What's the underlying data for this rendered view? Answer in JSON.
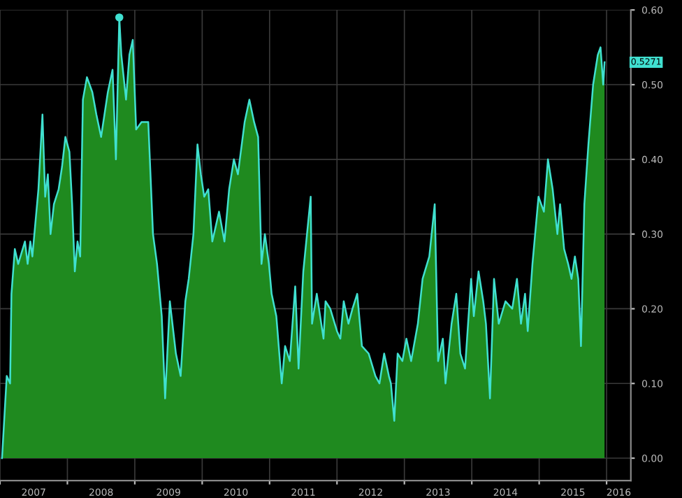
{
  "chart_data": {
    "type": "area",
    "xlim": [
      2007,
      2016.36
    ],
    "ylim": [
      -0.03,
      0.6
    ],
    "xticks": [
      {
        "value": 2007,
        "label": null
      },
      {
        "value": 2007.5,
        "label": "2007"
      },
      {
        "value": 2008,
        "label": null
      },
      {
        "value": 2008.5,
        "label": "2008"
      },
      {
        "value": 2009,
        "label": null
      },
      {
        "value": 2009.5,
        "label": "2009"
      },
      {
        "value": 2010,
        "label": null
      },
      {
        "value": 2010.5,
        "label": "2010"
      },
      {
        "value": 2011,
        "label": null
      },
      {
        "value": 2011.5,
        "label": "2011"
      },
      {
        "value": 2012,
        "label": null
      },
      {
        "value": 2012.5,
        "label": "2012"
      },
      {
        "value": 2013,
        "label": null
      },
      {
        "value": 2013.5,
        "label": "2013"
      },
      {
        "value": 2014,
        "label": null
      },
      {
        "value": 2014.5,
        "label": "2014"
      },
      {
        "value": 2015,
        "label": null
      },
      {
        "value": 2015.5,
        "label": "2015"
      },
      {
        "value": 2016,
        "label": null
      },
      {
        "value": 2016.18,
        "label": "2016"
      }
    ],
    "yticks": [
      {
        "value": 0,
        "label": "0.00"
      },
      {
        "value": 0.1,
        "label": "0.10"
      },
      {
        "value": 0.2,
        "label": "0.20"
      },
      {
        "value": 0.3,
        "label": "0.30"
      },
      {
        "value": 0.4,
        "label": "0.40"
      },
      {
        "value": 0.5,
        "label": "0.50"
      },
      {
        "value": 0.6,
        "label": "0.60"
      }
    ],
    "grid": true,
    "series": [
      {
        "color": "#40e0d0",
        "x": [
          2007.03,
          2007.1,
          2007.15,
          2007.17,
          2007.22,
          2007.27,
          2007.37,
          2007.41,
          2007.45,
          2007.48,
          2007.52,
          2007.57,
          2007.63,
          2007.67,
          2007.71,
          2007.75,
          2007.8,
          2007.87,
          2007.92,
          2007.97,
          2008.03,
          2008.07,
          2008.11,
          2008.15,
          2008.19,
          2008.23,
          2008.29,
          2008.37,
          2008.43,
          2008.5,
          2008.55,
          2008.6,
          2008.67,
          2008.72,
          2008.77,
          2008.8,
          2008.87,
          2008.92,
          2008.97,
          2009.02,
          2009.1,
          2009.2,
          2009.27,
          2009.33,
          2009.4,
          2009.45,
          2009.52,
          2009.61,
          2009.68,
          2009.75,
          2009.8,
          2009.87,
          2009.93,
          2009.98,
          2010.03,
          2010.09,
          2010.15,
          2010.25,
          2010.33,
          2010.4,
          2010.47,
          2010.53,
          2010.63,
          2010.7,
          2010.77,
          2010.83,
          2010.88,
          2010.93,
          2010.99,
          2011.03,
          2011.1,
          2011.18,
          2011.23,
          2011.3,
          2011.38,
          2011.43,
          2011.5,
          2011.61,
          2011.63,
          2011.7,
          2011.8,
          2011.83,
          2011.9,
          2012.0,
          2012.05,
          2012.1,
          2012.17,
          2012.23,
          2012.3,
          2012.37,
          2012.47,
          2012.57,
          2012.63,
          2012.7,
          2012.77,
          2012.8,
          2012.85,
          2012.9,
          2012.97,
          2013.03,
          2013.1,
          2013.2,
          2013.27,
          2013.37,
          2013.45,
          2013.5,
          2013.57,
          2013.61,
          2013.7,
          2013.77,
          2013.83,
          2013.9,
          2013.93,
          2013.99,
          2014.03,
          2014.1,
          2014.17,
          2014.21,
          2014.27,
          2014.33,
          2014.4,
          2014.5,
          2014.6,
          2014.67,
          2014.73,
          2014.79,
          2014.83,
          2014.9,
          2014.99,
          2015.07,
          2015.13,
          2015.2,
          2015.27,
          2015.31,
          2015.37,
          2015.43,
          2015.48,
          2015.53,
          2015.58,
          2015.62,
          2015.67,
          2015.73,
          2015.8,
          2015.87,
          2015.91,
          2015.95,
          2015.97
        ],
        "values": [
          0,
          0.11,
          0.1,
          0.22,
          0.28,
          0.26,
          0.29,
          0.26,
          0.29,
          0.27,
          0.31,
          0.36,
          0.46,
          0.35,
          0.38,
          0.3,
          0.34,
          0.36,
          0.39,
          0.43,
          0.41,
          0.34,
          0.25,
          0.29,
          0.27,
          0.48,
          0.51,
          0.49,
          0.46,
          0.43,
          0.46,
          0.49,
          0.52,
          0.4,
          0.59,
          0.54,
          0.48,
          0.54,
          0.56,
          0.44,
          0.45,
          0.45,
          0.3,
          0.26,
          0.19,
          0.08,
          0.21,
          0.14,
          0.11,
          0.21,
          0.24,
          0.3,
          0.42,
          0.38,
          0.35,
          0.36,
          0.29,
          0.33,
          0.29,
          0.36,
          0.4,
          0.38,
          0.45,
          0.48,
          0.45,
          0.43,
          0.26,
          0.3,
          0.26,
          0.22,
          0.19,
          0.1,
          0.15,
          0.13,
          0.23,
          0.12,
          0.25,
          0.35,
          0.18,
          0.22,
          0.16,
          0.21,
          0.2,
          0.17,
          0.16,
          0.21,
          0.18,
          0.2,
          0.22,
          0.15,
          0.14,
          0.11,
          0.1,
          0.14,
          0.11,
          0.1,
          0.05,
          0.14,
          0.13,
          0.16,
          0.13,
          0.18,
          0.24,
          0.27,
          0.34,
          0.13,
          0.16,
          0.1,
          0.18,
          0.22,
          0.14,
          0.12,
          0.16,
          0.24,
          0.19,
          0.25,
          0.21,
          0.18,
          0.08,
          0.24,
          0.18,
          0.21,
          0.2,
          0.24,
          0.18,
          0.22,
          0.17,
          0.26,
          0.35,
          0.33,
          0.4,
          0.36,
          0.3,
          0.34,
          0.28,
          0.26,
          0.24,
          0.27,
          0.24,
          0.15,
          0.34,
          0.42,
          0.5,
          0.54,
          0.55,
          0.5,
          0.53
        ]
      },
      {
        "type": "scatter",
        "color": "#40e0d0",
        "marker": "circle",
        "x": [
          2008.77
        ],
        "values": [
          0.59
        ]
      }
    ],
    "annotations": [
      "0.5271"
    ]
  }
}
